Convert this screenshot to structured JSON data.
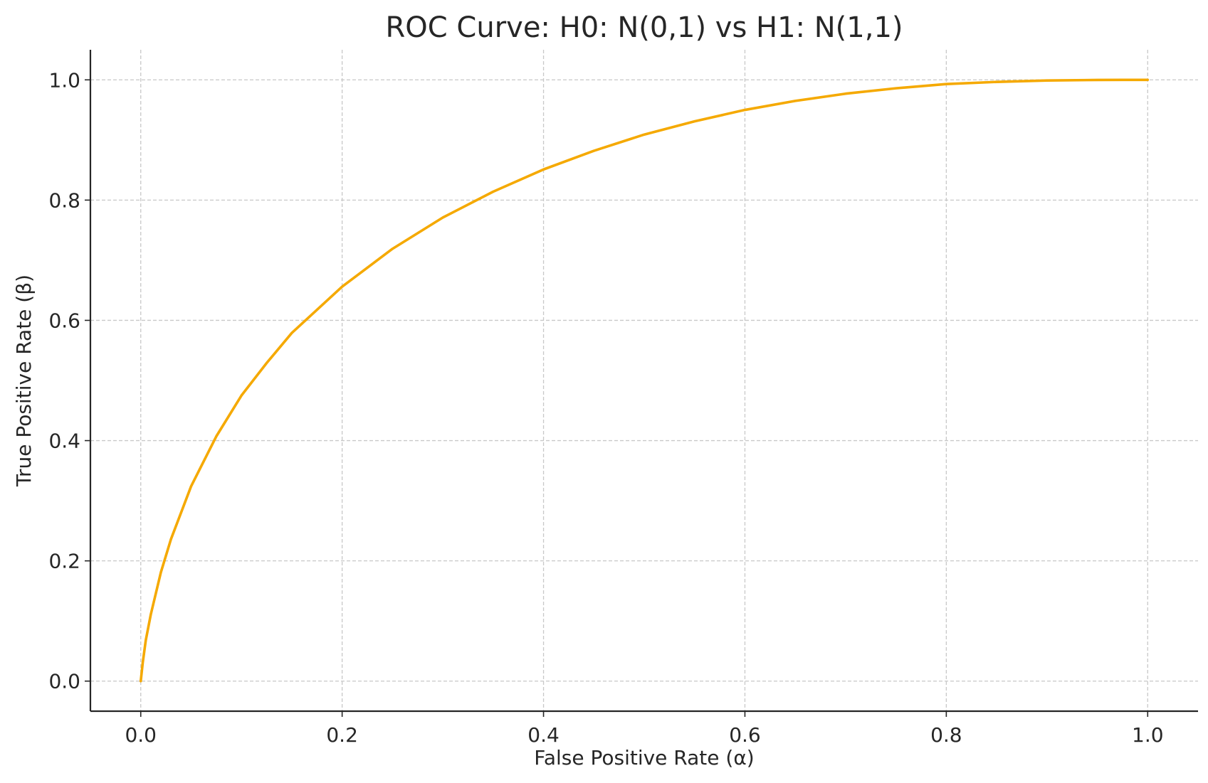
{
  "chart_data": {
    "type": "line",
    "title": "ROC Curve: H0: N(0,1) vs H1: N(1,1)",
    "xlabel": "False Positive Rate (α)",
    "ylabel": "True Positive Rate (β)",
    "xlim": [
      -0.05,
      1.05
    ],
    "ylim": [
      -0.05,
      1.05
    ],
    "xticks": [
      0.0,
      0.2,
      0.4,
      0.6,
      0.8,
      1.0
    ],
    "yticks": [
      0.0,
      0.2,
      0.4,
      0.6,
      0.8,
      1.0
    ],
    "xtick_labels": [
      "0.0",
      "0.2",
      "0.4",
      "0.6",
      "0.8",
      "1.0"
    ],
    "ytick_labels": [
      "0.0",
      "0.2",
      "0.4",
      "0.6",
      "0.8",
      "1.0"
    ],
    "grid": true,
    "legend": "none",
    "series": [
      {
        "color": "#F5A900",
        "x": [
          0.0,
          0.002,
          0.005,
          0.01,
          0.02,
          0.03,
          0.05,
          0.075,
          0.1,
          0.125,
          0.15,
          0.2,
          0.25,
          0.3,
          0.35,
          0.4,
          0.45,
          0.5,
          0.55,
          0.6,
          0.65,
          0.7,
          0.75,
          0.8,
          0.85,
          0.9,
          0.95,
          0.975,
          0.99,
          1.0
        ],
        "y": [
          0.0,
          0.031,
          0.068,
          0.111,
          0.181,
          0.236,
          0.324,
          0.407,
          0.475,
          0.529,
          0.579,
          0.656,
          0.719,
          0.771,
          0.814,
          0.851,
          0.882,
          0.909,
          0.931,
          0.95,
          0.965,
          0.977,
          0.986,
          0.993,
          0.9966,
          0.9989,
          0.9998,
          0.99997,
          1.0,
          1.0
        ]
      }
    ]
  }
}
